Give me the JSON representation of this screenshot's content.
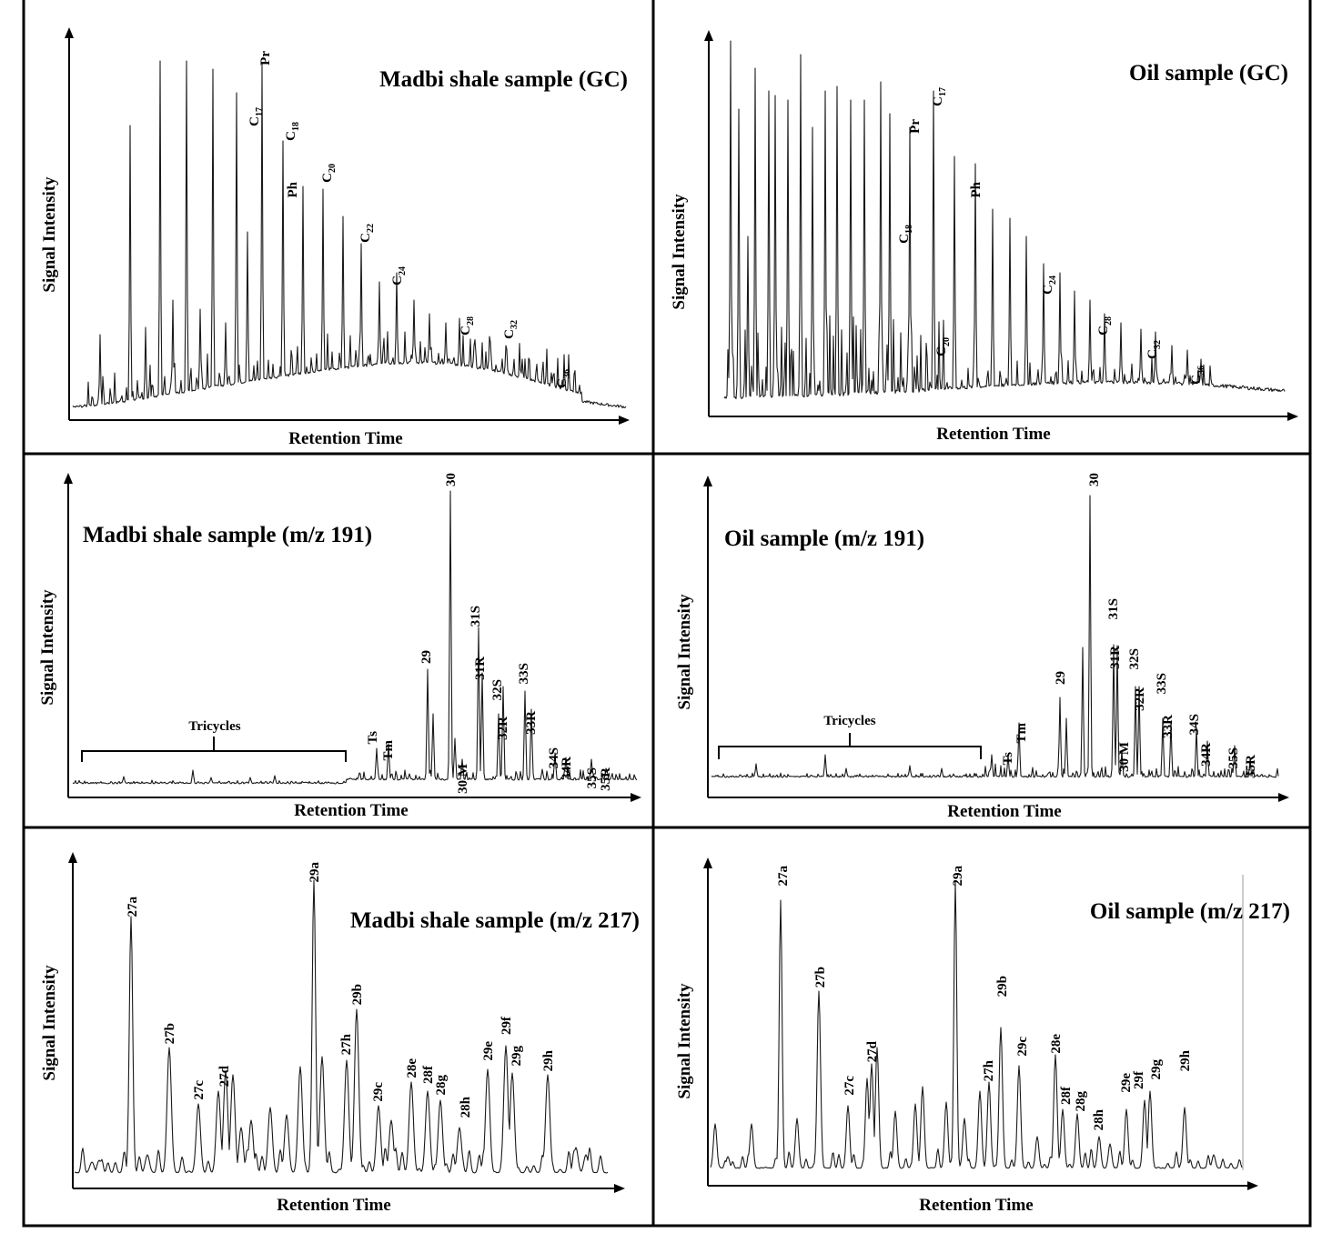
{
  "chart_data": [
    {
      "type": "line",
      "title": "Madbi shale sample (GC)",
      "xlabel": "Retention Time",
      "ylabel": "Signal Intensity",
      "peak_labels": [
        "Pr",
        "C17",
        "C18",
        "Ph",
        "C20",
        "C22",
        "C24",
        "C28",
        "C32",
        "C36"
      ]
    },
    {
      "type": "line",
      "title": "Oil sample (GC)",
      "xlabel": "Retention Time",
      "ylabel": "Signal Intensity",
      "peak_labels": [
        "C18",
        "Pr",
        "C17",
        "C20",
        "Ph",
        "C24",
        "C28",
        "C32",
        "C36"
      ]
    },
    {
      "type": "line",
      "title": "Madbi shale sample (m/z 191)",
      "xlabel": "Retention Time",
      "ylabel": "Signal Intensity",
      "bracket_label": "Tricycles",
      "peak_labels": [
        "Ts",
        "Tm",
        "29",
        "30",
        "30 M",
        "31S",
        "31R",
        "32S",
        "32R",
        "33S",
        "33R",
        "34S",
        "34R",
        "35S",
        "35R"
      ]
    },
    {
      "type": "line",
      "title": "Oil sample (m/z 191)",
      "xlabel": "Retention Time",
      "ylabel": "Signal Intensity",
      "bracket_label": "Tricycles",
      "peak_labels": [
        "Ts",
        "Tm",
        "29",
        "30",
        "31S",
        "31R",
        "30 M",
        "32S",
        "32R",
        "33S",
        "33R",
        "34S",
        "34R",
        "35S",
        "35R"
      ]
    },
    {
      "type": "line",
      "title": "Madbi shale sample (m/z 217)",
      "xlabel": "Retention Time",
      "ylabel": "Signal Intensity",
      "peak_labels": [
        "27a",
        "27b",
        "27c",
        "27d",
        "29a",
        "27h",
        "29b",
        "29c",
        "28e",
        "28f",
        "28g",
        "28h",
        "29e",
        "29f",
        "29g",
        "29h"
      ]
    },
    {
      "type": "line",
      "title": "Oil sample (m/z 217)",
      "xlabel": "Retention Time",
      "ylabel": "Signal Intensity",
      "peak_labels": [
        "27a",
        "27b",
        "27c",
        "27d",
        "29a",
        "27h",
        "29b",
        "29c",
        "28e",
        "28f",
        "28g",
        "28h",
        "29e",
        "29f",
        "29g",
        "29h"
      ]
    }
  ]
}
